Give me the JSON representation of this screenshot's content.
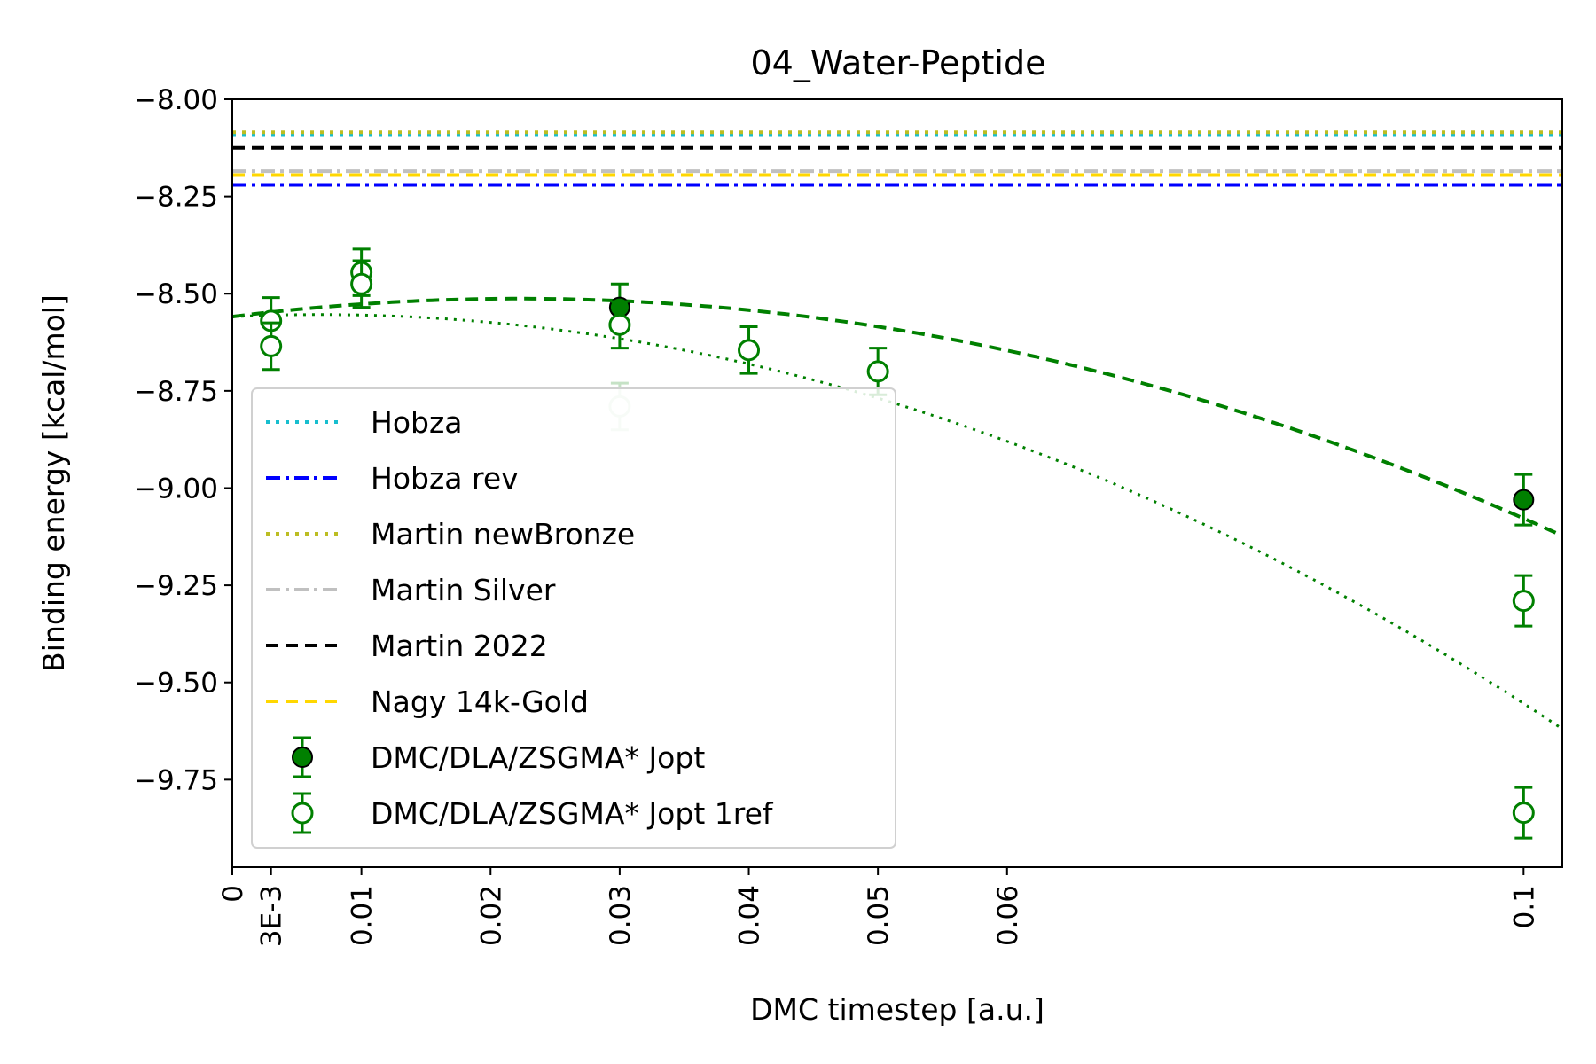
{
  "chart_data": {
    "type": "scatter",
    "title": "04_Water-Peptide",
    "xlabel": "DMC timestep [a.u.]",
    "ylabel": "Binding energy [kcal/mol]",
    "xlim": [
      0,
      0.103
    ],
    "ylim": [
      -9.975,
      -8.0
    ],
    "x_ticks": [
      {
        "value": 0,
        "label": "0"
      },
      {
        "value": 0.003,
        "label": "3E-3"
      },
      {
        "value": 0.01,
        "label": "0.01"
      },
      {
        "value": 0.02,
        "label": "0.02"
      },
      {
        "value": 0.03,
        "label": "0.03"
      },
      {
        "value": 0.04,
        "label": "0.04"
      },
      {
        "value": 0.05,
        "label": "0.05"
      },
      {
        "value": 0.06,
        "label": "0.06"
      },
      {
        "value": 0.1,
        "label": "0.1"
      }
    ],
    "y_ticks": [
      {
        "value": -8.0,
        "label": "−8.00"
      },
      {
        "value": -8.25,
        "label": "−8.25"
      },
      {
        "value": -8.5,
        "label": "−8.50"
      },
      {
        "value": -8.75,
        "label": "−8.75"
      },
      {
        "value": -9.0,
        "label": "−9.00"
      },
      {
        "value": -9.25,
        "label": "−9.25"
      },
      {
        "value": -9.5,
        "label": "−9.50"
      },
      {
        "value": -9.75,
        "label": "−9.75"
      }
    ],
    "grid": false,
    "legend_position": "lower-left",
    "reference_lines": [
      {
        "name": "Hobza",
        "value": -8.09,
        "color": "#17becf",
        "style": "dotted"
      },
      {
        "name": "Hobza rev",
        "value": -8.22,
        "color": "#0000ff",
        "style": "dashdot"
      },
      {
        "name": "Martin newBronze",
        "value": -8.085,
        "color": "#bcbd22",
        "style": "dotted"
      },
      {
        "name": "Martin Silver",
        "value": -8.185,
        "color": "#c0c0c0",
        "style": "dashdot"
      },
      {
        "name": "Martin 2022",
        "value": -8.125,
        "color": "#000000",
        "style": "dashed"
      },
      {
        "name": "Nagy 14k-Gold",
        "value": -8.195,
        "color": "#ffd700",
        "style": "dashed"
      }
    ],
    "series": [
      {
        "name": "DMC/DLA/ZSGMA* Jopt",
        "marker": "filled-circle",
        "color": "#008000",
        "points": [
          {
            "x": 0.03,
            "y": -8.535,
            "err": 0.06
          },
          {
            "x": 0.1,
            "y": -9.03,
            "err": 0.065
          }
        ]
      },
      {
        "name": "DMC/DLA/ZSGMA* Jopt 1ref",
        "marker": "open-circle",
        "color": "#008000",
        "points": [
          {
            "x": 0.003,
            "y": -8.57,
            "err": 0.06
          },
          {
            "x": 0.003,
            "y": -8.635,
            "err": 0.06
          },
          {
            "x": 0.01,
            "y": -8.445,
            "err": 0.06
          },
          {
            "x": 0.01,
            "y": -8.475,
            "err": 0.06
          },
          {
            "x": 0.03,
            "y": -8.58,
            "err": 0.06
          },
          {
            "x": 0.03,
            "y": -8.79,
            "err": 0.06,
            "faded": true
          },
          {
            "x": 0.04,
            "y": -8.645,
            "err": 0.06
          },
          {
            "x": 0.05,
            "y": -8.7,
            "err": 0.06
          },
          {
            "x": 0.1,
            "y": -9.29,
            "err": 0.065
          },
          {
            "x": 0.1,
            "y": -9.835,
            "err": 0.065
          }
        ]
      }
    ],
    "fit_curves": [
      {
        "style": "dashed",
        "color": "#008000",
        "a": -8.559,
        "b": 4.16,
        "c": -93.5
      },
      {
        "style": "dotted",
        "color": "#008000",
        "a": -8.559,
        "b": 1.56,
        "c": -115.1
      }
    ]
  }
}
